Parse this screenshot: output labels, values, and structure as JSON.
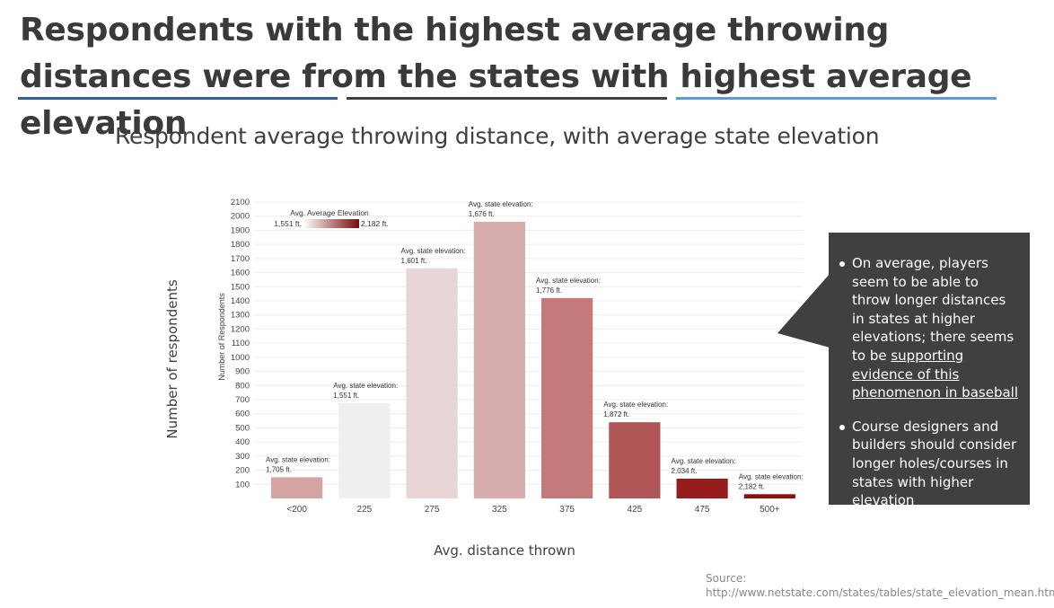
{
  "header": {
    "headline": "Respondents with the highest average throwing distances were from the states with highest average elevation",
    "rule_colors": [
      "#2e5f9e",
      "#404040",
      "#5a9bd8"
    ]
  },
  "subtitle": "Respondent average throwing distance, with average state elevation",
  "outer_labels": {
    "y": "Number of respondents",
    "x": "Avg. distance thrown"
  },
  "chart_data": {
    "type": "bar",
    "categories": [
      "<200",
      "225",
      "275",
      "325",
      "375",
      "425",
      "475",
      "500+"
    ],
    "values": [
      150,
      675,
      1630,
      1960,
      1420,
      540,
      140,
      30
    ],
    "ylabel": "Number of Respondents",
    "xlabel": "",
    "yticks": [
      100,
      200,
      300,
      400,
      500,
      600,
      700,
      800,
      900,
      1000,
      1100,
      1200,
      1300,
      1400,
      1500,
      1600,
      1700,
      1800,
      1900,
      2000,
      2100
    ],
    "ylim": [
      0,
      2100
    ],
    "grid": true,
    "bar_labels": [
      {
        "prefix": "Avg. state elevation:",
        "value": "1,705 ft."
      },
      {
        "prefix": "Avg. state elevation:",
        "value": "1,551 ft."
      },
      {
        "prefix": "Avg. state elevation:",
        "value": "1,601 ft."
      },
      {
        "prefix": "Avg. state elevation:",
        "value": "1,676 ft."
      },
      {
        "prefix": "Avg. state elevation:",
        "value": "1,776 ft."
      },
      {
        "prefix": "Avg. state elevation:",
        "value": "1,872 ft."
      },
      {
        "prefix": "Avg. state elevation:",
        "value": "2,034 ft."
      },
      {
        "prefix": "Avg. state elevation:",
        "value": "2,182 ft."
      }
    ],
    "bar_colors": [
      "#d4a3a3",
      "#f0efef",
      "#e8d6d6",
      "#d7adad",
      "#c47a7a",
      "#b15656",
      "#951d1d",
      "#8a1010"
    ],
    "legend": {
      "title": "Avg. Average Elevation",
      "min_label": "1,551 ft.",
      "max_label": "2,182 ft.",
      "color_min": "#ffffff",
      "color_max": "#7a0a0a",
      "placement": "top-left"
    }
  },
  "callout": {
    "bullets": [
      {
        "text": "On average, players seem to be able to throw longer distances in states at higher elevations; there seems to be ",
        "link": "supporting evidence of this phenomenon in baseball"
      },
      {
        "text": "Course designers and builders should consider longer holes/courses in states with higher elevation",
        "link": ""
      }
    ]
  },
  "source": {
    "label": "Source:",
    "url": "http://www.netstate.com/states/tables/state_elevation_mean.htm"
  }
}
